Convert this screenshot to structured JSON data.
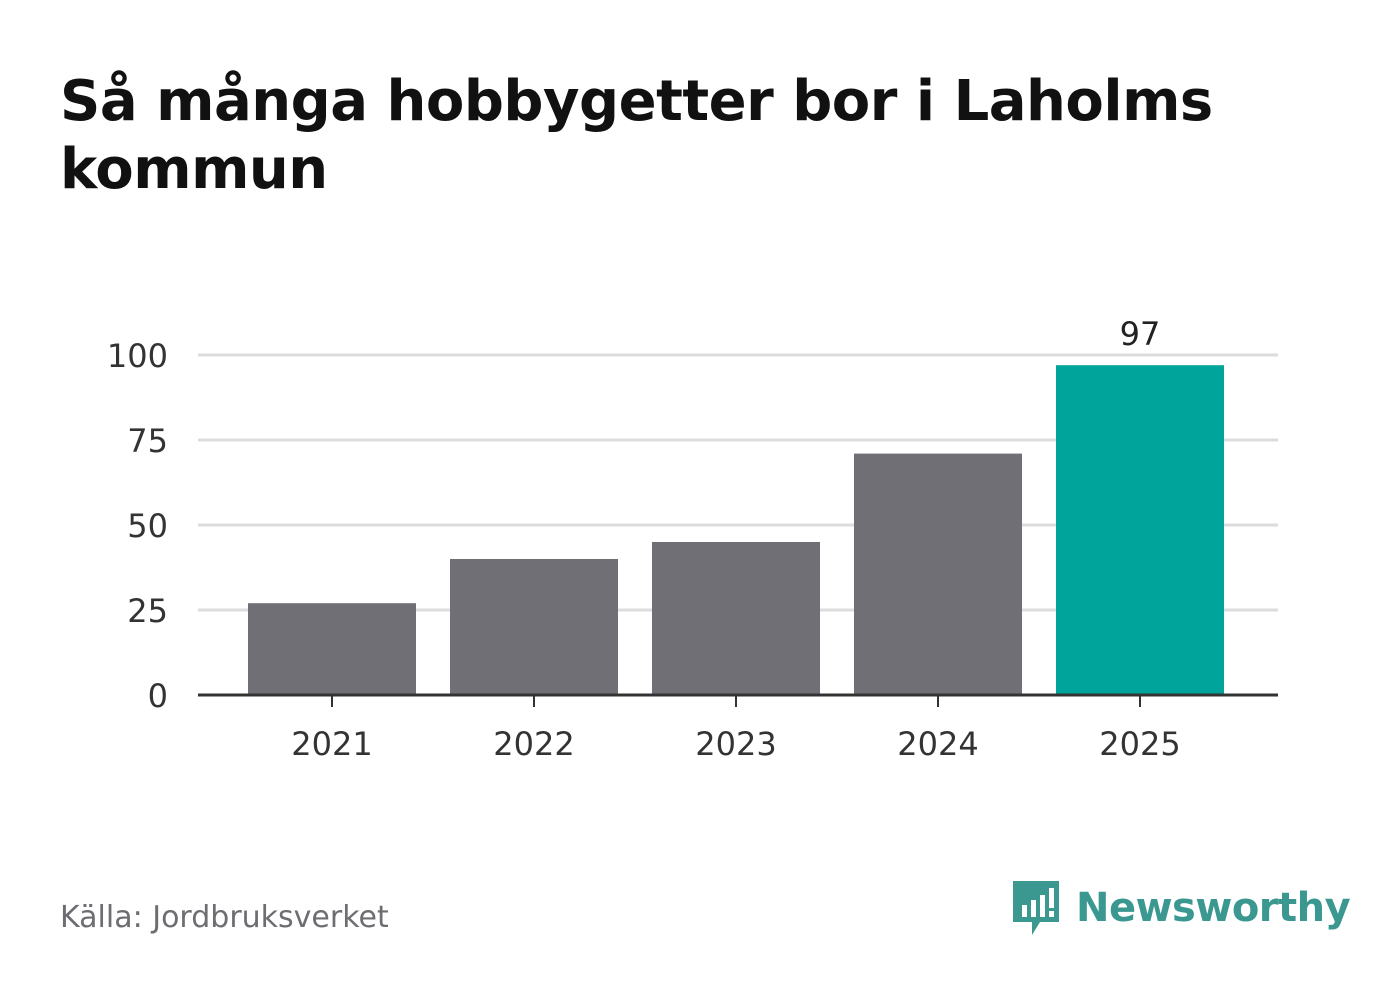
{
  "title": "Så många hobbygetter bor i Laholms kommun",
  "source": "Källa: Jordbruksverket",
  "brand": {
    "name": "Newsworthy",
    "logo_icon": "newsworthy-logo-icon",
    "color": "#3a9891"
  },
  "chart_data": {
    "type": "bar",
    "categories": [
      "2021",
      "2022",
      "2023",
      "2024",
      "2025"
    ],
    "values": [
      27,
      40,
      45,
      71,
      97
    ],
    "labeled_values": [
      null,
      null,
      null,
      null,
      "97"
    ],
    "title": "Så många hobbygetter bor i Laholms kommun",
    "xlabel": "",
    "ylabel": "",
    "ylim": [
      0,
      100
    ],
    "yticks": [
      0,
      25,
      50,
      75,
      100
    ],
    "grid": true,
    "bar_color": "#706f75",
    "highlight_color": "#00a49a",
    "highlight_index": 4
  }
}
